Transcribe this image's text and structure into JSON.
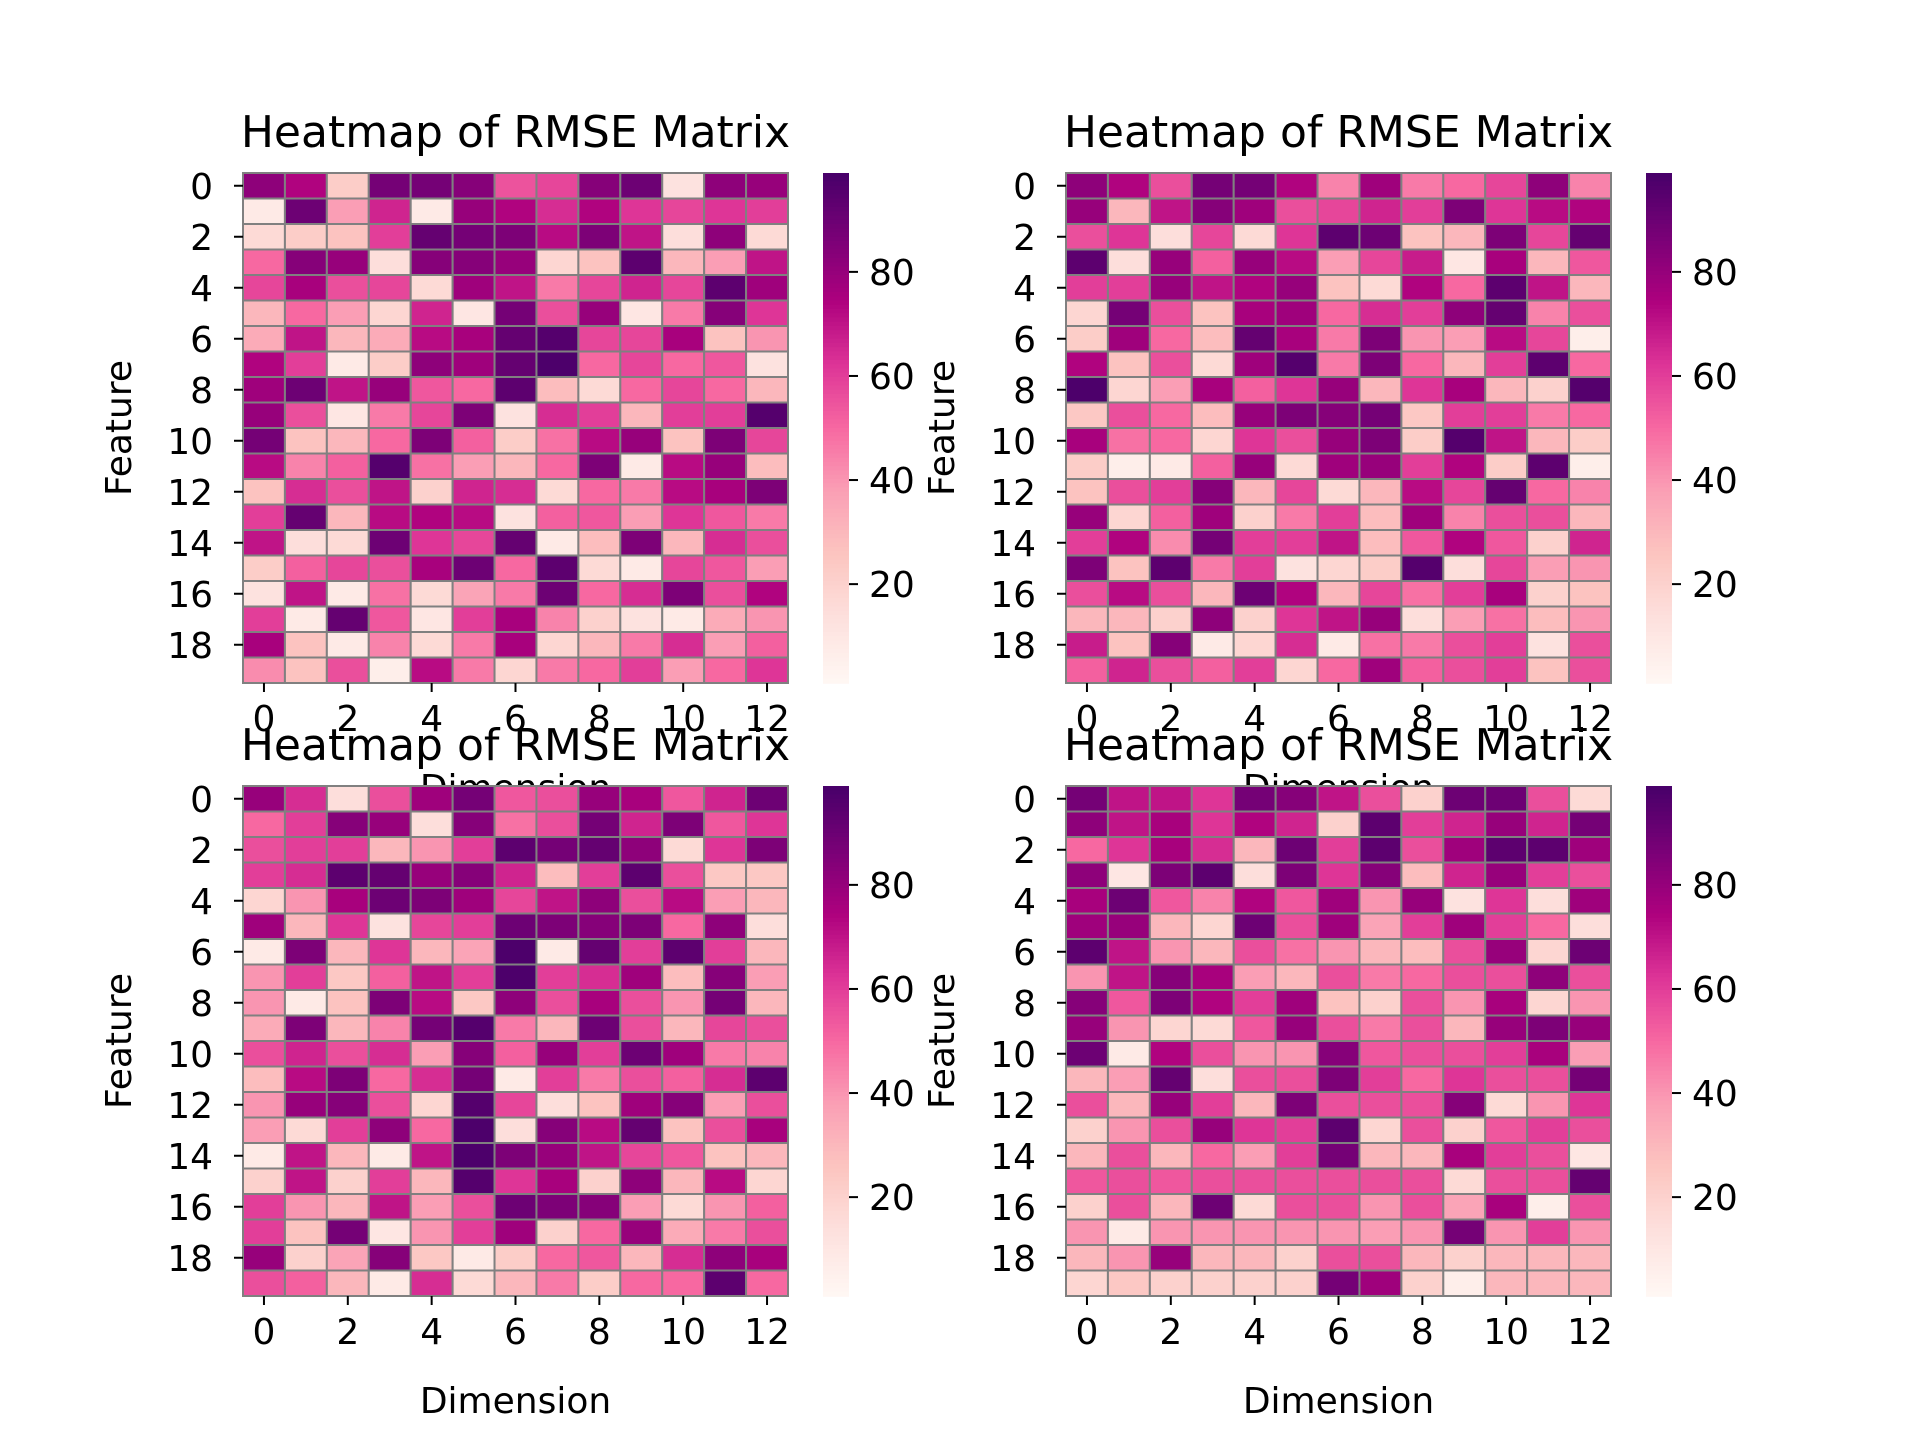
{
  "figure": {
    "colormap": "RdPu",
    "colormap_stops": [
      "#fff7f3",
      "#fde0dd",
      "#fcc5c0",
      "#fa9fb5",
      "#f768a1",
      "#dd3497",
      "#ae017e",
      "#7a0177",
      "#49006a"
    ],
    "cell_border_color": "#808080"
  },
  "chart_data": [
    {
      "type": "heatmap",
      "title": "Heatmap of RMSE Matrix",
      "xlabel": "Dimension",
      "ylabel": "Feature",
      "x_ticks": [
        "0",
        "2",
        "4",
        "6",
        "8",
        "10",
        "12"
      ],
      "y_ticks": [
        "0",
        "2",
        "4",
        "6",
        "8",
        "10",
        "12",
        "14",
        "16",
        "18"
      ],
      "colorbar_ticks": [
        "20",
        "40",
        "60",
        "80"
      ],
      "vmin": 1,
      "vmax": 99,
      "values": [
        [
          82,
          74,
          22,
          88,
          88,
          84,
          55,
          58,
          84,
          90,
          12,
          82,
          80
        ],
        [
          8,
          90,
          38,
          66,
          8,
          80,
          74,
          64,
          74,
          62,
          58,
          62,
          60
        ],
        [
          16,
          22,
          26,
          60,
          92,
          88,
          86,
          72,
          86,
          70,
          14,
          82,
          16
        ],
        [
          50,
          84,
          80,
          14,
          84,
          84,
          80,
          18,
          26,
          94,
          30,
          38,
          70
        ],
        [
          58,
          76,
          56,
          58,
          16,
          78,
          70,
          46,
          58,
          66,
          58,
          94,
          78
        ],
        [
          30,
          50,
          38,
          18,
          66,
          10,
          88,
          56,
          80,
          10,
          46,
          84,
          62
        ],
        [
          34,
          70,
          30,
          34,
          72,
          76,
          92,
          96,
          58,
          58,
          76,
          26,
          40
        ],
        [
          74,
          60,
          8,
          22,
          82,
          78,
          92,
          98,
          50,
          58,
          50,
          54,
          12
        ],
        [
          78,
          90,
          70,
          80,
          54,
          50,
          94,
          28,
          16,
          50,
          58,
          50,
          30
        ],
        [
          80,
          56,
          10,
          46,
          58,
          86,
          12,
          64,
          60,
          30,
          60,
          60,
          96
        ],
        [
          88,
          26,
          30,
          50,
          86,
          52,
          22,
          48,
          72,
          80,
          26,
          86,
          58
        ],
        [
          72,
          44,
          52,
          96,
          48,
          38,
          30,
          50,
          86,
          8,
          72,
          80,
          28
        ],
        [
          26,
          64,
          56,
          70,
          20,
          66,
          64,
          16,
          50,
          46,
          72,
          76,
          86
        ],
        [
          60,
          92,
          30,
          72,
          74,
          72,
          12,
          52,
          54,
          38,
          62,
          54,
          46
        ],
        [
          70,
          14,
          16,
          90,
          62,
          58,
          92,
          8,
          28,
          86,
          30,
          64,
          56
        ],
        [
          22,
          52,
          58,
          56,
          76,
          90,
          50,
          94,
          16,
          8,
          58,
          54,
          38
        ],
        [
          12,
          70,
          8,
          48,
          16,
          36,
          46,
          90,
          50,
          64,
          86,
          56,
          74
        ],
        [
          60,
          8,
          92,
          54,
          10,
          60,
          76,
          44,
          20,
          12,
          8,
          34,
          40
        ],
        [
          76,
          26,
          8,
          44,
          16,
          46,
          76,
          18,
          30,
          46,
          64,
          38,
          52
        ],
        [
          42,
          26,
          56,
          6,
          72,
          46,
          18,
          46,
          50,
          60,
          38,
          50,
          62
        ]
      ]
    },
    {
      "type": "heatmap",
      "title": "Heatmap of RMSE Matrix",
      "xlabel": "Dimension",
      "ylabel": "Feature",
      "x_ticks": [
        "0",
        "2",
        "4",
        "6",
        "8",
        "10",
        "12"
      ],
      "y_ticks": [
        "0",
        "2",
        "4",
        "6",
        "8",
        "10",
        "12",
        "14",
        "16",
        "18"
      ],
      "colorbar_ticks": [
        "20",
        "40",
        "60",
        "80"
      ],
      "vmin": 1,
      "vmax": 99,
      "values": [
        [
          82,
          74,
          56,
          88,
          88,
          74,
          44,
          78,
          46,
          50,
          58,
          82,
          44
        ],
        [
          80,
          30,
          70,
          84,
          78,
          56,
          58,
          66,
          60,
          86,
          62,
          72,
          74
        ],
        [
          56,
          62,
          14,
          58,
          16,
          62,
          94,
          90,
          26,
          30,
          86,
          58,
          92
        ],
        [
          94,
          14,
          80,
          52,
          80,
          72,
          38,
          58,
          68,
          10,
          76,
          30,
          54
        ],
        [
          60,
          60,
          80,
          70,
          74,
          80,
          26,
          16,
          74,
          50,
          94,
          70,
          30
        ],
        [
          18,
          88,
          56,
          26,
          76,
          78,
          50,
          64,
          60,
          82,
          92,
          44,
          56
        ],
        [
          22,
          78,
          50,
          28,
          92,
          76,
          46,
          86,
          40,
          38,
          72,
          58,
          6
        ],
        [
          74,
          26,
          56,
          16,
          78,
          96,
          46,
          86,
          50,
          30,
          60,
          94,
          50
        ],
        [
          98,
          18,
          38,
          76,
          52,
          62,
          80,
          30,
          62,
          76,
          30,
          20,
          96
        ],
        [
          24,
          56,
          50,
          28,
          80,
          86,
          84,
          88,
          24,
          60,
          60,
          46,
          50
        ],
        [
          76,
          48,
          50,
          18,
          62,
          56,
          80,
          86,
          22,
          96,
          70,
          30,
          22
        ],
        [
          22,
          6,
          8,
          52,
          80,
          16,
          78,
          80,
          60,
          74,
          22,
          94,
          6
        ],
        [
          26,
          56,
          60,
          84,
          30,
          58,
          16,
          30,
          72,
          58,
          92,
          50,
          44
        ],
        [
          80,
          18,
          52,
          78,
          20,
          46,
          60,
          28,
          78,
          44,
          56,
          56,
          30
        ],
        [
          60,
          74,
          42,
          88,
          60,
          60,
          70,
          28,
          54,
          74,
          54,
          20,
          66
        ],
        [
          86,
          26,
          94,
          46,
          60,
          12,
          18,
          22,
          96,
          14,
          58,
          38,
          40
        ],
        [
          56,
          72,
          56,
          30,
          90,
          74,
          30,
          58,
          48,
          60,
          76,
          20,
          26
        ],
        [
          30,
          30,
          20,
          82,
          20,
          62,
          70,
          80,
          14,
          38,
          48,
          28,
          40
        ],
        [
          68,
          26,
          84,
          8,
          18,
          64,
          8,
          48,
          46,
          56,
          60,
          12,
          56
        ],
        [
          52,
          66,
          56,
          52,
          60,
          18,
          50,
          78,
          52,
          56,
          60,
          26,
          56
        ]
      ]
    },
    {
      "type": "heatmap",
      "title": "Heatmap of RMSE Matrix",
      "xlabel": "Dimension",
      "ylabel": "Feature",
      "x_ticks": [
        "0",
        "2",
        "4",
        "6",
        "8",
        "10",
        "12"
      ],
      "y_ticks": [
        "0",
        "2",
        "4",
        "6",
        "8",
        "10",
        "12",
        "14",
        "16",
        "18"
      ],
      "colorbar_ticks": [
        "20",
        "40",
        "60",
        "80"
      ],
      "vmin": 1,
      "vmax": 99,
      "values": [
        [
          80,
          64,
          14,
          56,
          78,
          88,
          54,
          56,
          80,
          76,
          54,
          66,
          90
        ],
        [
          50,
          60,
          84,
          80,
          14,
          84,
          48,
          56,
          88,
          66,
          86,
          54,
          62
        ],
        [
          56,
          60,
          60,
          30,
          40,
          60,
          94,
          88,
          92,
          82,
          16,
          62,
          86
        ],
        [
          60,
          64,
          94,
          92,
          80,
          84,
          66,
          28,
          60,
          94,
          56,
          24,
          24
        ],
        [
          18,
          40,
          76,
          90,
          86,
          78,
          58,
          70,
          82,
          56,
          72,
          38,
          30
        ],
        [
          78,
          30,
          62,
          12,
          58,
          60,
          90,
          86,
          84,
          86,
          50,
          82,
          14
        ],
        [
          8,
          86,
          30,
          62,
          30,
          36,
          98,
          8,
          92,
          60,
          94,
          60,
          30
        ],
        [
          40,
          60,
          24,
          52,
          70,
          60,
          98,
          60,
          64,
          78,
          28,
          84,
          38
        ],
        [
          40,
          8,
          26,
          86,
          72,
          24,
          82,
          56,
          76,
          56,
          40,
          88,
          30
        ],
        [
          34,
          86,
          30,
          44,
          88,
          96,
          46,
          30,
          90,
          56,
          30,
          58,
          56
        ],
        [
          56,
          66,
          56,
          64,
          38,
          84,
          52,
          80,
          60,
          90,
          78,
          46,
          44
        ],
        [
          28,
          72,
          86,
          50,
          64,
          88,
          8,
          60,
          46,
          56,
          52,
          64,
          94
        ],
        [
          40,
          80,
          84,
          56,
          18,
          96,
          58,
          14,
          26,
          78,
          84,
          38,
          56
        ],
        [
          38,
          16,
          60,
          82,
          50,
          98,
          14,
          84,
          72,
          92,
          26,
          56,
          76
        ],
        [
          8,
          70,
          30,
          8,
          70,
          98,
          86,
          80,
          70,
          58,
          54,
          26,
          30
        ],
        [
          20,
          70,
          20,
          60,
          30,
          96,
          62,
          76,
          20,
          82,
          30,
          72,
          18
        ],
        [
          60,
          40,
          30,
          70,
          38,
          56,
          90,
          86,
          84,
          38,
          16,
          40,
          52
        ],
        [
          60,
          26,
          88,
          10,
          40,
          60,
          78,
          20,
          50,
          80,
          34,
          46,
          56
        ],
        [
          80,
          20,
          36,
          84,
          24,
          8,
          22,
          50,
          54,
          30,
          64,
          82,
          76
        ],
        [
          56,
          52,
          30,
          8,
          64,
          16,
          30,
          46,
          22,
          50,
          50,
          94,
          50
        ]
      ]
    },
    {
      "type": "heatmap",
      "title": "Heatmap of RMSE Matrix",
      "xlabel": "Dimension",
      "ylabel": "Feature",
      "x_ticks": [
        "0",
        "2",
        "4",
        "6",
        "8",
        "10",
        "12"
      ],
      "y_ticks": [
        "0",
        "2",
        "4",
        "6",
        "8",
        "10",
        "12",
        "14",
        "16",
        "18"
      ],
      "colorbar_ticks": [
        "20",
        "40",
        "60",
        "80"
      ],
      "vmin": 1,
      "vmax": 99,
      "values": [
        [
          88,
          70,
          70,
          62,
          88,
          84,
          70,
          56,
          20,
          90,
          90,
          56,
          16
        ],
        [
          82,
          70,
          76,
          62,
          74,
          66,
          20,
          94,
          60,
          66,
          80,
          66,
          88
        ],
        [
          50,
          62,
          76,
          64,
          30,
          90,
          60,
          94,
          56,
          78,
          94,
          94,
          78
        ],
        [
          82,
          10,
          86,
          94,
          14,
          86,
          62,
          84,
          28,
          66,
          80,
          60,
          56
        ],
        [
          76,
          90,
          54,
          44,
          74,
          54,
          78,
          40,
          80,
          12,
          62,
          14,
          78
        ],
        [
          78,
          80,
          30,
          18,
          90,
          56,
          78,
          36,
          60,
          78,
          60,
          50,
          14
        ],
        [
          94,
          70,
          40,
          30,
          56,
          48,
          40,
          30,
          28,
          56,
          80,
          18,
          90
        ],
        [
          40,
          70,
          84,
          76,
          38,
          30,
          56,
          46,
          50,
          56,
          56,
          82,
          56
        ],
        [
          84,
          54,
          86,
          74,
          60,
          78,
          26,
          20,
          56,
          40,
          76,
          18,
          40
        ],
        [
          80,
          40,
          18,
          16,
          54,
          80,
          56,
          46,
          56,
          30,
          80,
          86,
          80
        ],
        [
          90,
          8,
          74,
          56,
          40,
          40,
          84,
          54,
          56,
          56,
          60,
          76,
          38
        ],
        [
          30,
          38,
          92,
          14,
          56,
          56,
          86,
          60,
          50,
          62,
          56,
          56,
          88
        ],
        [
          56,
          30,
          80,
          60,
          30,
          86,
          56,
          56,
          56,
          84,
          16,
          40,
          62
        ],
        [
          20,
          40,
          56,
          80,
          62,
          60,
          94,
          18,
          56,
          20,
          54,
          60,
          56
        ],
        [
          30,
          56,
          30,
          50,
          38,
          60,
          88,
          30,
          30,
          76,
          60,
          56,
          10
        ],
        [
          54,
          56,
          54,
          56,
          56,
          56,
          56,
          56,
          56,
          16,
          56,
          56,
          92
        ],
        [
          20,
          56,
          30,
          90,
          16,
          56,
          56,
          40,
          56,
          36,
          76,
          6,
          56
        ],
        [
          40,
          8,
          40,
          40,
          40,
          40,
          40,
          38,
          40,
          88,
          40,
          60,
          40
        ],
        [
          30,
          40,
          80,
          30,
          30,
          20,
          56,
          56,
          30,
          20,
          30,
          30,
          30
        ],
        [
          18,
          24,
          20,
          20,
          20,
          20,
          88,
          78,
          20,
          6,
          30,
          30,
          30
        ]
      ]
    }
  ]
}
